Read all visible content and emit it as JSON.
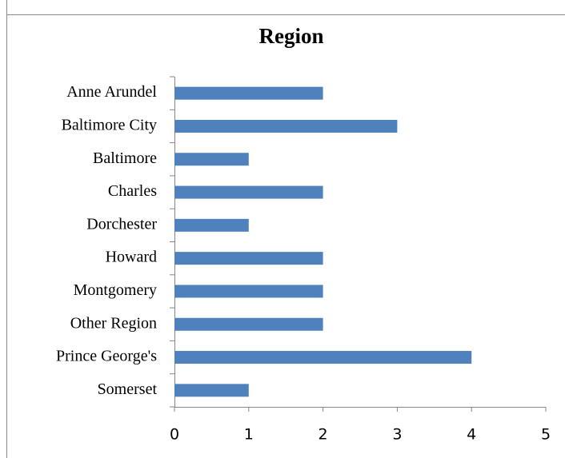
{
  "chart_data": {
    "type": "bar",
    "orientation": "horizontal",
    "title": "Region",
    "categories": [
      "Anne Arundel",
      "Baltimore City",
      "Baltimore",
      "Charles",
      "Dorchester",
      "Howard",
      "Montgomery",
      "Other Region",
      "Prince George's",
      "Somerset"
    ],
    "values": [
      2,
      3,
      1,
      2,
      1,
      2,
      2,
      2,
      4,
      1
    ],
    "color": "#4f81bd",
    "xlim": [
      0,
      5
    ],
    "xticks": [
      0,
      1,
      2,
      3,
      4,
      5
    ],
    "grid": false
  }
}
